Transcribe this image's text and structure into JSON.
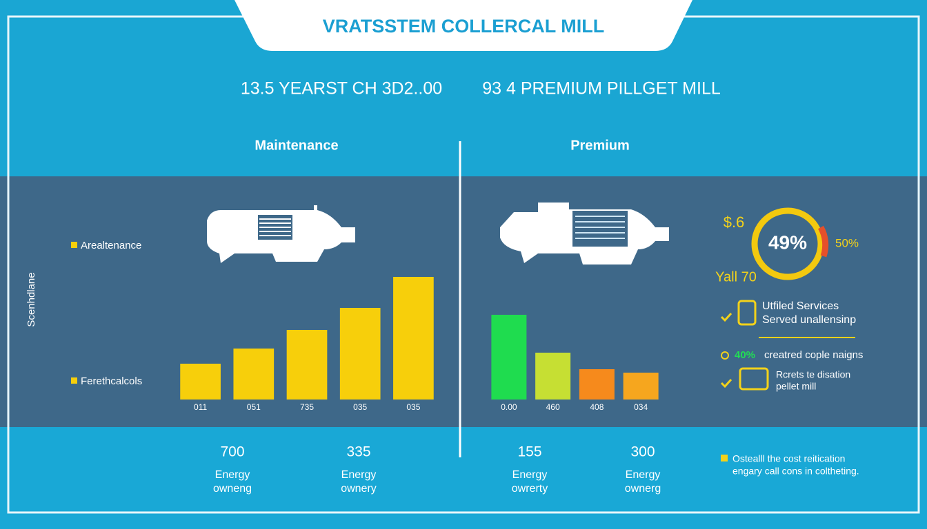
{
  "header": {
    "title": "VRATSSTEM COLLERCAL MILL",
    "subtitle_left": "13.5 YEARST CH 3D2..00",
    "subtitle_right": "93 4 PREMIUM PILLGET MILL"
  },
  "sections": [
    "Maintenance",
    "Premium"
  ],
  "side_label": "Scenhdlane",
  "legend": [
    "Arealtenance",
    "Ferethcalcols"
  ],
  "chart_data": [
    {
      "type": "bar",
      "categories": [
        "011",
        "051",
        "735",
        "035",
        "035"
      ],
      "values": [
        52,
        74,
        101,
        133,
        178
      ],
      "color": "#f7cf0b",
      "ylim": [
        0,
        200
      ]
    },
    {
      "type": "bar",
      "categories": [
        "0.00",
        "460",
        "408",
        "034"
      ],
      "values": [
        123,
        68,
        44,
        39
      ],
      "colors": [
        "#1fdc4f",
        "#c6df33",
        "#f68a1c",
        "#f6a61e"
      ],
      "ylim": [
        0,
        200
      ]
    }
  ],
  "gauge": {
    "center": "49%",
    "top_left": "$.6",
    "right": "50%",
    "bottom_left": "Yall 70"
  },
  "features": [
    {
      "title": "Utfiled Services",
      "text": "Served unallensinp"
    },
    {
      "title": "40%",
      "text": "creatred cople naigns"
    },
    {
      "title": "Rcrets te disation",
      "text": "pellet mill"
    }
  ],
  "stats": [
    {
      "value": 700,
      "lines": [
        "Energy",
        "owneng"
      ]
    },
    {
      "value": 335,
      "lines": [
        "Energy",
        "ownery"
      ]
    },
    {
      "value": 155,
      "lines": [
        "Energy",
        "owrerty"
      ]
    },
    {
      "value": 300,
      "lines": [
        "Energy",
        "ownerg"
      ]
    }
  ],
  "note": [
    "Ostealll the cost reitication",
    "engary call cons in coltheting."
  ]
}
